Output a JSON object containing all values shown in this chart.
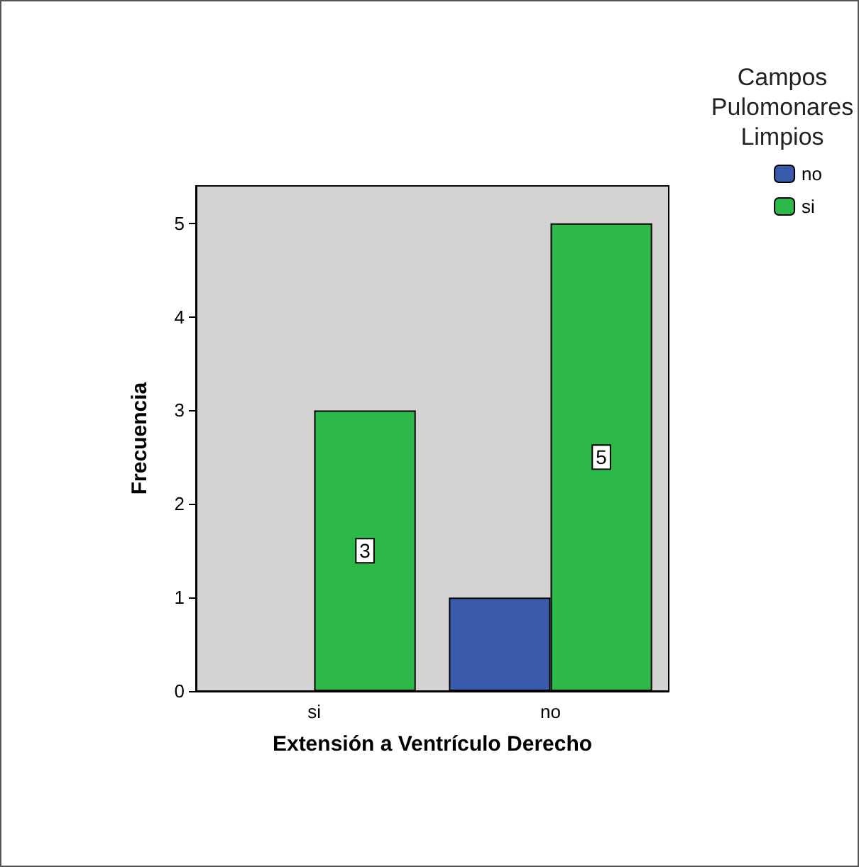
{
  "chart_data": {
    "type": "bar",
    "xlabel": "Extensión a Ventrículo Derecho",
    "ylabel": "Frecuencia",
    "legend_title": "Campos Pulomonares Limpios",
    "categories": [
      "si",
      "no"
    ],
    "series": [
      {
        "name": "no",
        "color": "#3a5aab",
        "values": [
          0,
          1
        ],
        "value_labels": [
          null,
          null
        ]
      },
      {
        "name": "si",
        "color": "#2db84a",
        "values": [
          3,
          5
        ],
        "value_labels": [
          "3",
          "5"
        ]
      }
    ],
    "ylim": [
      0,
      5.4
    ],
    "yticks": [
      0,
      1,
      2,
      3,
      4,
      5
    ],
    "grid": false,
    "legend": "top right"
  }
}
